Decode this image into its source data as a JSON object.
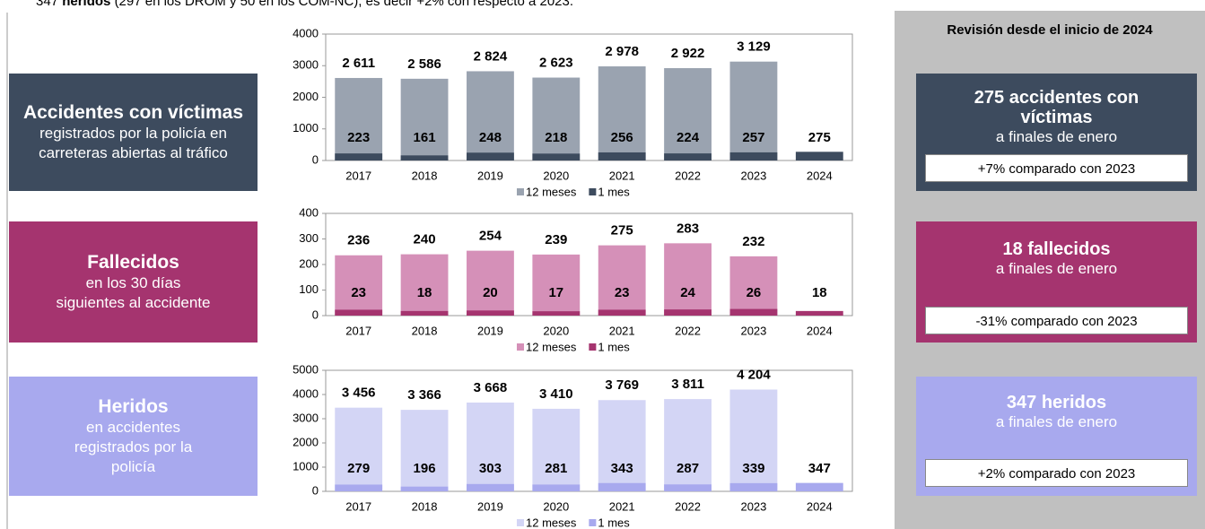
{
  "header": {
    "number": "347",
    "bold": "heridos",
    "rest": "(297 en los DROM y 50 en los COM-NC), es decir +2% con respecto a 2023."
  },
  "left_boxes": [
    {
      "title": "Accidentes con víctimas",
      "subtitle": "registrados por la policía en carreteras abiertas al tráfico"
    },
    {
      "title": "Fallecidos",
      "subtitle": "en los 30 días siguientes al accidente"
    },
    {
      "title": "Heridos",
      "subtitle": "en accidentes registrados por la policía"
    }
  ],
  "right_panel": {
    "title": "Revisión desde el inicio de 2024",
    "boxes": [
      {
        "headline": "275 accidentes con víctimas",
        "sub": "a finales de enero",
        "comparison": "+7% comparado con 2023"
      },
      {
        "headline": "18 fallecidos",
        "sub": "a finales de enero",
        "comparison": "-31% comparado con 2023"
      },
      {
        "headline": "347 heridos",
        "sub": "a finales de enero",
        "comparison": "+2% comparado con 2023"
      }
    ]
  },
  "chart_data": [
    {
      "type": "bar",
      "categories": [
        "2017",
        "2018",
        "2019",
        "2020",
        "2021",
        "2022",
        "2023",
        "2024"
      ],
      "series": [
        {
          "name": "12 meses",
          "color": "#9aa3b0",
          "values": [
            2611,
            2586,
            2824,
            2623,
            2978,
            2922,
            3129,
            null
          ],
          "value_labels": [
            "2 611",
            "2 586",
            "2 824",
            "2 623",
            "2 978",
            "2 922",
            "3 129",
            null
          ]
        },
        {
          "name": "1 mes",
          "color": "#3d4b5e",
          "values": [
            223,
            161,
            248,
            218,
            256,
            224,
            257,
            275
          ]
        }
      ],
      "ylim": [
        0,
        4000
      ],
      "yticks": [
        0,
        1000,
        2000,
        3000,
        4000
      ]
    },
    {
      "type": "bar",
      "categories": [
        "2017",
        "2018",
        "2019",
        "2020",
        "2021",
        "2022",
        "2023",
        "2024"
      ],
      "series": [
        {
          "name": "12 meses",
          "color": "#d590b8",
          "values": [
            236,
            240,
            254,
            239,
            275,
            283,
            232,
            null
          ]
        },
        {
          "name": "1 mes",
          "color": "#a5346f",
          "values": [
            23,
            18,
            20,
            17,
            23,
            24,
            26,
            18
          ]
        }
      ],
      "ylim": [
        0,
        400
      ],
      "yticks": [
        0,
        100,
        200,
        300,
        400
      ]
    },
    {
      "type": "bar",
      "categories": [
        "2017",
        "2018",
        "2019",
        "2020",
        "2021",
        "2022",
        "2023",
        "2024"
      ],
      "series": [
        {
          "name": "12 meses",
          "color": "#d3d5f5",
          "values": [
            3456,
            3366,
            3668,
            3410,
            3769,
            3811,
            4204,
            null
          ],
          "value_labels": [
            "3 456",
            "3 366",
            "3 668",
            "3 410",
            "3 769",
            "3 811",
            "4 204",
            null
          ]
        },
        {
          "name": "1 mes",
          "color": "#a8a9ee",
          "values": [
            279,
            196,
            303,
            281,
            343,
            287,
            339,
            347
          ]
        }
      ],
      "ylim": [
        0,
        5000
      ],
      "yticks": [
        0,
        1000,
        2000,
        3000,
        4000,
        5000
      ]
    }
  ]
}
